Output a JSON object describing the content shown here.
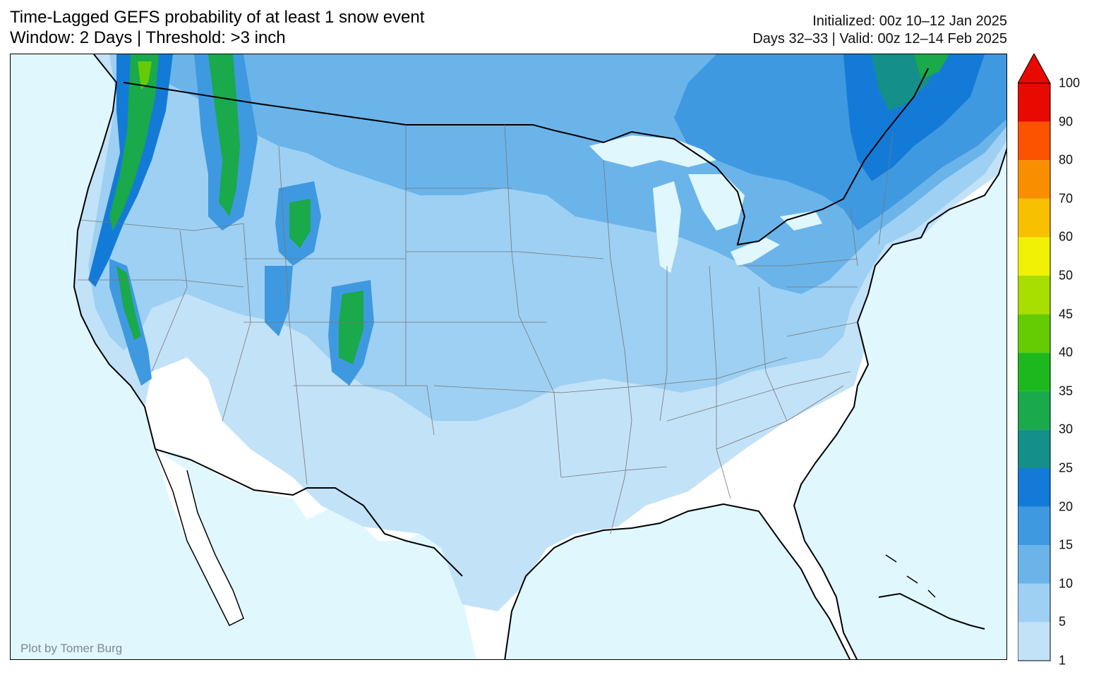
{
  "header": {
    "title_line1": "Time-Lagged GEFS probability of at least 1 snow event",
    "title_line2": "Window: 2 Days | Threshold: >3 inch",
    "init_line": "Initialized: 00z 10–12 Jan 2025",
    "valid_line": "Days 32–33 | Valid: 00z 12–14 Feb 2025"
  },
  "map": {
    "credit": "Plot by Tomer Burg",
    "ocean_color": "#e0f7fd",
    "land_color": "#ffffff"
  },
  "colorbar": {
    "extend": "max",
    "levels": [
      "1",
      "5",
      "10",
      "15",
      "20",
      "25",
      "30",
      "35",
      "40",
      "45",
      "50",
      "60",
      "70",
      "80",
      "90",
      "100"
    ],
    "colors": [
      "#c2e2f8",
      "#9dd0f3",
      "#6ab4ea",
      "#3f99e0",
      "#137bd7",
      "#158f8a",
      "#1aa94b",
      "#1cb81e",
      "#65cc04",
      "#a8de00",
      "#f1f106",
      "#f7c000",
      "#f98f00",
      "#fb5300",
      "#e80a00"
    ]
  }
}
